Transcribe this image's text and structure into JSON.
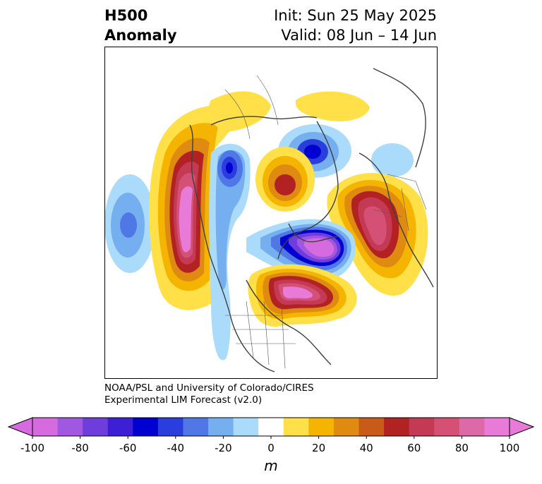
{
  "title": {
    "left_line1": "H500",
    "left_line2": "Anomaly",
    "right_line1": "Init: Sun 25 May 2025",
    "right_line2": "Valid: 08 Jun – 14 Jun"
  },
  "credit": {
    "line1": "NOAA/PSL and University of Colorado/CIRES",
    "line2": "Experimental LIM Forecast (v2.0)"
  },
  "colorbar": {
    "units": "m",
    "ticks": [
      "-100",
      "-80",
      "-60",
      "-40",
      "-20",
      "0",
      "20",
      "40",
      "60",
      "80",
      "100"
    ],
    "levels": [
      -100,
      -90,
      -80,
      -70,
      -60,
      -50,
      -40,
      -30,
      -20,
      -10,
      10,
      20,
      30,
      40,
      50,
      60,
      70,
      80,
      90,
      100
    ],
    "colors": [
      "#d66be0",
      "#9f58df",
      "#6e3ddc",
      "#3d1fd6",
      "#0000d0",
      "#2a3edd",
      "#4f78e6",
      "#76afef",
      "#abdbfb",
      "#ffffff",
      "#ffe048",
      "#f4b400",
      "#df8a10",
      "#c85b18",
      "#b22222",
      "#c43a55",
      "#d45075",
      "#dd6aa8",
      "#e87ad8"
    ],
    "extend_low_color": "#d66be0",
    "extend_high_color": "#e87ad8"
  }
}
